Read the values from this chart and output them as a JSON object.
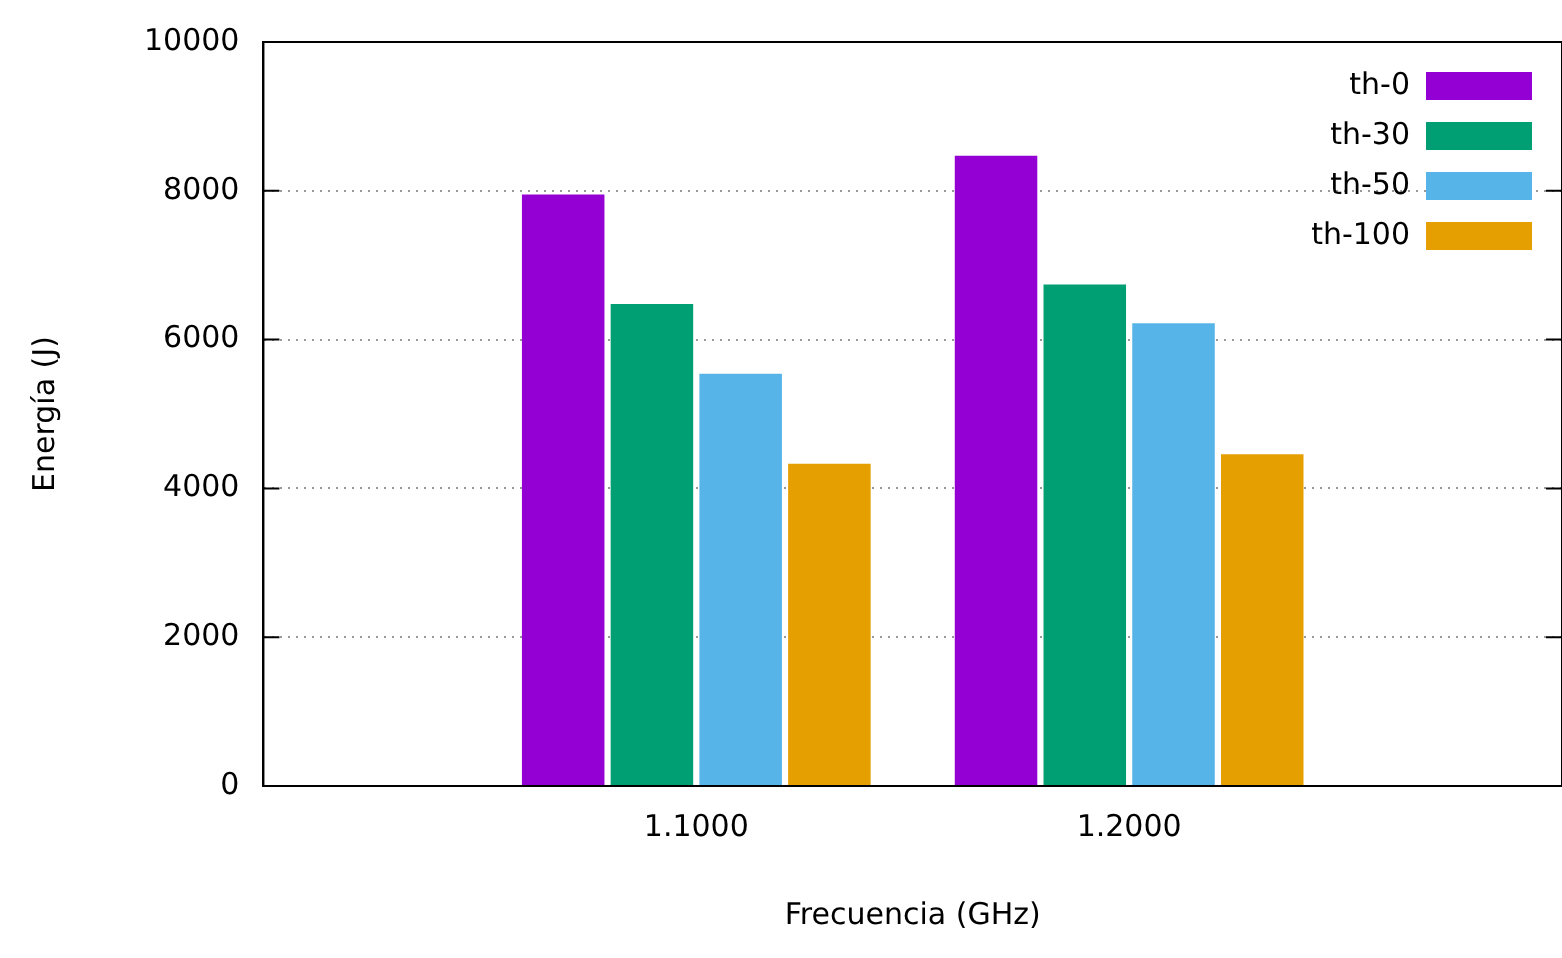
{
  "chart_data": {
    "type": "bar",
    "xlabel": "Frecuencia (GHz)",
    "ylabel": "Energía (J)",
    "categories": [
      "1.1000",
      "1.2000"
    ],
    "series": [
      {
        "name": "th-0",
        "color": "#9400d3",
        "values": [
          7950,
          8470
        ]
      },
      {
        "name": "th-30",
        "color": "#009e73",
        "values": [
          6480,
          6740
        ]
      },
      {
        "name": "th-50",
        "color": "#56b4e9",
        "values": [
          5540,
          6220
        ]
      },
      {
        "name": "th-100",
        "color": "#e69f00",
        "values": [
          4330,
          4460
        ]
      }
    ],
    "ylim": [
      0,
      10000
    ],
    "yticks": [
      0,
      2000,
      4000,
      6000,
      8000,
      10000
    ],
    "grid": "y",
    "legend": "top right"
  }
}
